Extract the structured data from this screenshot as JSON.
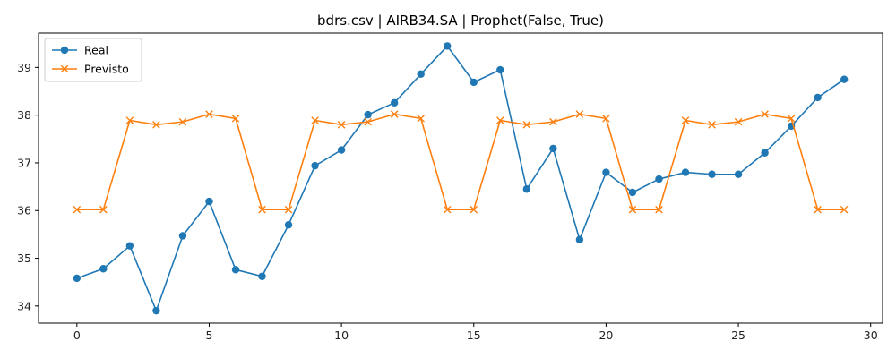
{
  "chart_data": {
    "type": "line",
    "title": "bdrs.csv | AIRB34.SA | Prophet(False, True)",
    "xlabel": "",
    "ylabel": "",
    "xlim": [
      -1.45,
      30.45
    ],
    "ylim": [
      33.64,
      39.72
    ],
    "xticks": [
      0,
      5,
      10,
      15,
      20,
      25,
      30
    ],
    "yticks": [
      34,
      35,
      36,
      37,
      38,
      39
    ],
    "grid": false,
    "legend_position": "top-left",
    "x": [
      0,
      1,
      2,
      3,
      4,
      5,
      6,
      7,
      8,
      9,
      10,
      11,
      12,
      13,
      14,
      15,
      16,
      17,
      18,
      19,
      20,
      21,
      22,
      23,
      24,
      25,
      26,
      27,
      28,
      29
    ],
    "series": [
      {
        "name": "Real",
        "color": "#1f77b4",
        "marker": "circle",
        "values": [
          34.58,
          34.78,
          35.26,
          33.9,
          35.47,
          36.19,
          34.76,
          34.62,
          35.7,
          36.94,
          37.27,
          38.01,
          38.26,
          38.86,
          39.45,
          38.69,
          38.95,
          36.45,
          37.3,
          35.39,
          36.8,
          36.38,
          36.66,
          36.8,
          36.76,
          36.76,
          37.21,
          37.77,
          38.37,
          38.75
        ]
      },
      {
        "name": "Previsto",
        "color": "#ff7f0e",
        "marker": "x",
        "values": [
          36.02,
          36.02,
          37.89,
          37.8,
          37.86,
          38.02,
          37.93,
          36.02,
          36.02,
          37.89,
          37.8,
          37.86,
          38.02,
          37.93,
          36.02,
          36.02,
          37.89,
          37.8,
          37.86,
          38.02,
          37.93,
          36.02,
          36.02,
          37.89,
          37.8,
          37.86,
          38.02,
          37.93,
          36.02,
          36.02
        ]
      }
    ]
  }
}
